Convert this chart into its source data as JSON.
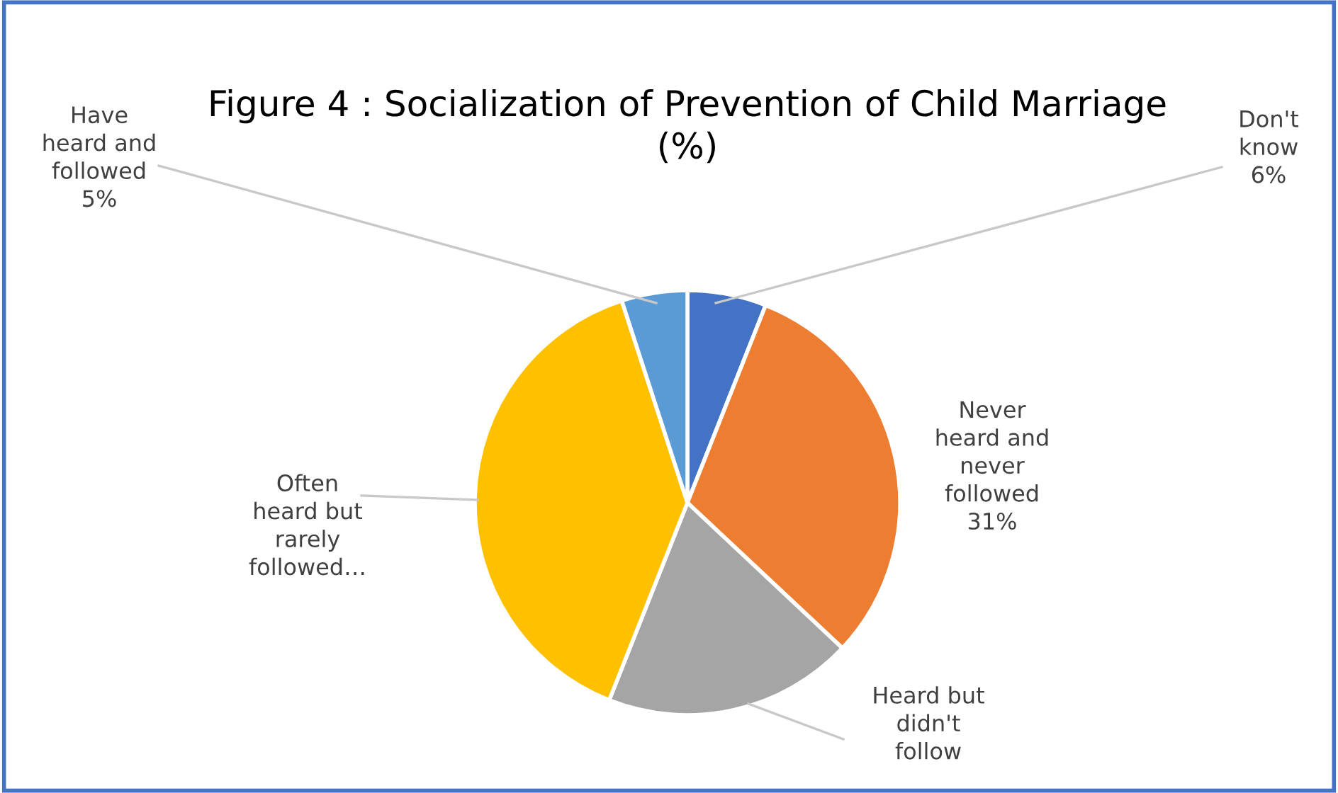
{
  "chart_data": {
    "type": "pie",
    "title": "Figure 4 : Socialization of Prevention of Child Marriage (%)",
    "categories": [
      "Don't know",
      "Never heard and never followed",
      "Heard but didn't follow",
      "Often heard but rarely followed…",
      "Have heard and followed"
    ],
    "values": [
      6,
      31,
      19,
      39,
      5
    ],
    "colors": [
      "#4472c4",
      "#ed7d31",
      "#a5a5a5",
      "#ffc000",
      "#5b9bd5"
    ],
    "value_labels": [
      "6%",
      "31%",
      null,
      null,
      "5%"
    ],
    "legend": false
  }
}
